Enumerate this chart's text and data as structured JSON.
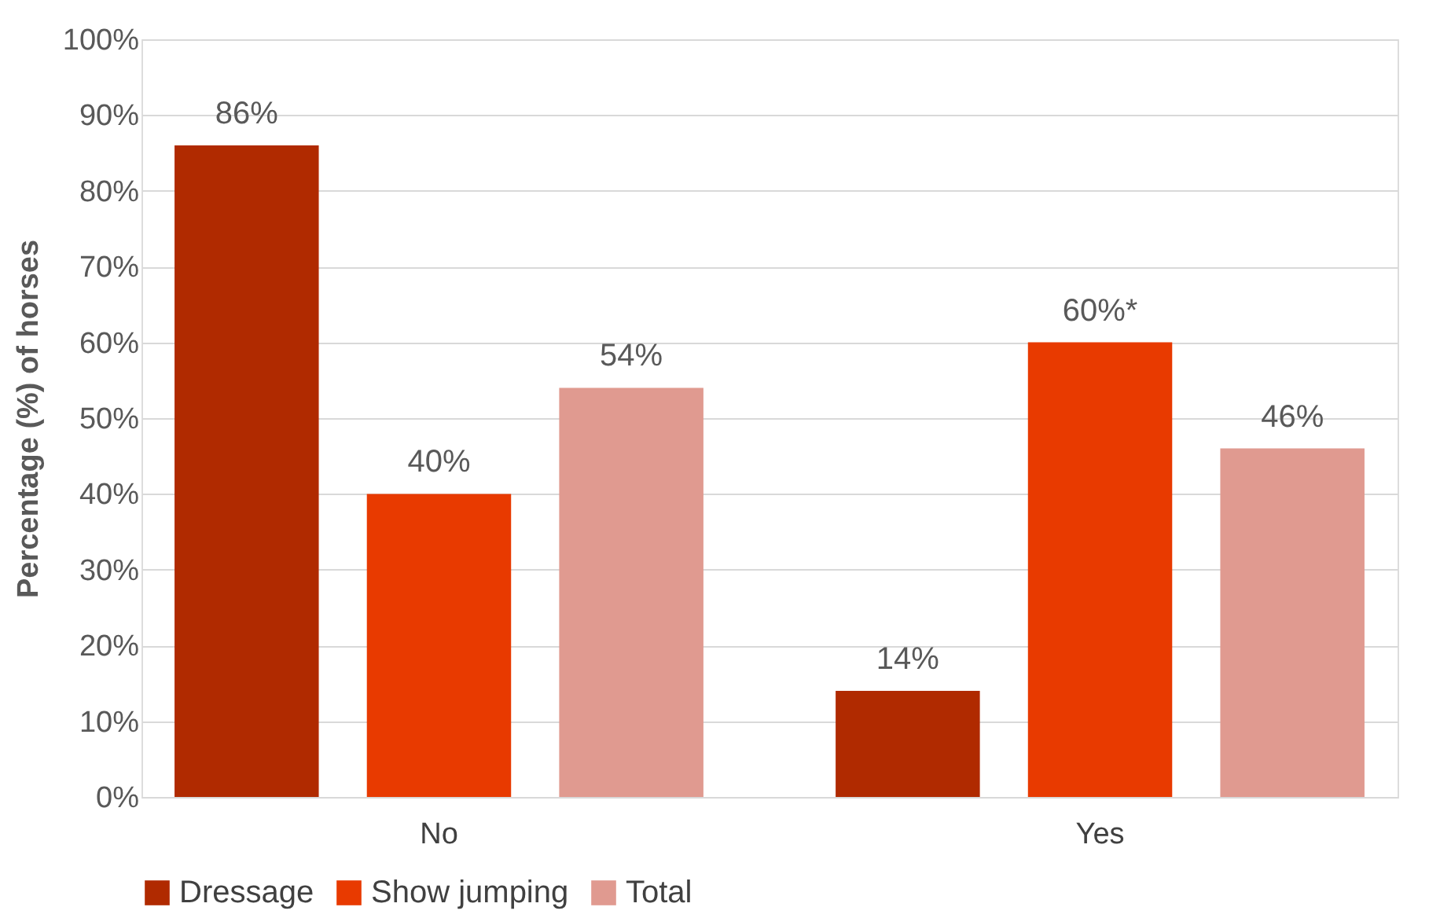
{
  "chart_data": {
    "type": "bar",
    "ylabel": "Percentage (%)  of horses",
    "categories": [
      "No",
      "Yes"
    ],
    "series": [
      {
        "name": "Dressage",
        "color": "#b02a00",
        "values": [
          86,
          14
        ],
        "value_labels": [
          "86%",
          "14%"
        ]
      },
      {
        "name": "Show jumping",
        "color": "#e83a00",
        "values": [
          40,
          60
        ],
        "value_labels": [
          "40%",
          "60%*"
        ]
      },
      {
        "name": "Total",
        "color": "#e09a90",
        "values": [
          54,
          46
        ],
        "value_labels": [
          "54%",
          "46%"
        ]
      }
    ],
    "ylim": [
      0,
      100
    ],
    "yticks": [
      {
        "value": 0,
        "label": "0%"
      },
      {
        "value": 10,
        "label": "10%"
      },
      {
        "value": 20,
        "label": "20%"
      },
      {
        "value": 30,
        "label": "30%"
      },
      {
        "value": 40,
        "label": "40%"
      },
      {
        "value": 50,
        "label": "50%"
      },
      {
        "value": 60,
        "label": "60%"
      },
      {
        "value": 70,
        "label": "70%"
      },
      {
        "value": 80,
        "label": "80%"
      },
      {
        "value": 90,
        "label": "90%"
      },
      {
        "value": 100,
        "label": "100%"
      }
    ],
    "grid": "y",
    "legend": "bottom"
  }
}
